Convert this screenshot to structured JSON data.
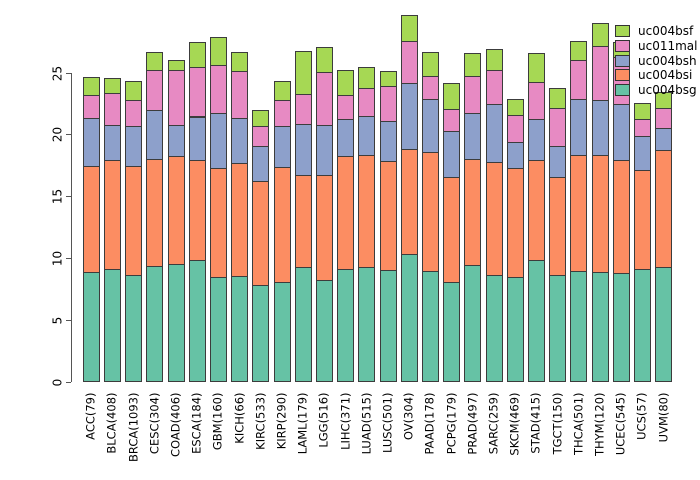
{
  "chart_data": {
    "type": "bar",
    "stacked": true,
    "title": "",
    "xlabel": "",
    "ylabel": "",
    "ylim": [
      0,
      29.6
    ],
    "y_ticks": [
      0,
      5,
      10,
      15,
      20,
      25
    ],
    "grid": false,
    "legend_position": "top-right",
    "categories": [
      "ACC(79)",
      "BLCA(408)",
      "BRCA(1093)",
      "CESC(304)",
      "COAD(406)",
      "ESCA(184)",
      "GBM(160)",
      "KICH(66)",
      "KIRC(533)",
      "KIRP(290)",
      "LAML(179)",
      "LGG(516)",
      "LIHC(371)",
      "LUAD(515)",
      "LUSC(501)",
      "OV(304)",
      "PAAD(178)",
      "PCPG(179)",
      "PRAD(497)",
      "SARC(259)",
      "SKCM(469)",
      "STAD(415)",
      "TGCT(150)",
      "THCA(501)",
      "THYM(120)",
      "UCEC(545)",
      "UCS(57)",
      "UVM(80)"
    ],
    "series": [
      {
        "name": "uc004bsg",
        "color": "#66C2A5",
        "values": [
          8.8,
          9.1,
          8.6,
          9.3,
          9.5,
          9.8,
          8.4,
          8.5,
          7.8,
          8.0,
          9.2,
          8.2,
          9.1,
          9.2,
          9.0,
          10.3,
          8.9,
          8.0,
          9.4,
          8.6,
          8.4,
          9.8,
          8.6,
          8.9,
          8.8,
          8.7,
          9.1,
          9.2
        ]
      },
      {
        "name": "uc004bsi",
        "color": "#FC8D62",
        "values": [
          8.6,
          8.8,
          8.8,
          8.7,
          8.7,
          8.1,
          8.8,
          9.1,
          8.4,
          9.3,
          7.5,
          8.5,
          9.1,
          9.1,
          8.8,
          8.5,
          9.6,
          8.5,
          8.6,
          9.1,
          8.8,
          8.1,
          7.9,
          9.4,
          9.45,
          9.2,
          8.0,
          9.5
        ]
      },
      {
        "name": "uc004bsh",
        "color": "#8DA0CB",
        "values": [
          3.9,
          2.8,
          3.2,
          3.9,
          2.5,
          3.5,
          4.5,
          3.7,
          2.8,
          3.3,
          4.1,
          4.0,
          3.0,
          3.1,
          3.2,
          5.3,
          4.3,
          3.7,
          3.7,
          4.7,
          2.1,
          3.3,
          2.5,
          4.5,
          4.45,
          4.5,
          2.7,
          1.8
        ]
      },
      {
        "name": "uc011mal",
        "color": "#E78AC3",
        "values": [
          1.8,
          2.6,
          2.1,
          3.3,
          4.5,
          4.0,
          3.9,
          3.8,
          1.6,
          2.1,
          2.4,
          4.3,
          1.9,
          2.3,
          2.9,
          3.4,
          1.9,
          1.8,
          3.0,
          2.8,
          2.2,
          3.0,
          3.1,
          3.2,
          4.4,
          3.8,
          1.4,
          1.55
        ]
      },
      {
        "name": "uc004bsf",
        "color": "#A6D854",
        "values": [
          1.5,
          1.2,
          1.6,
          1.4,
          0.8,
          2.0,
          2.2,
          1.5,
          1.3,
          1.6,
          3.5,
          2.0,
          2.1,
          1.7,
          1.2,
          2.1,
          1.9,
          2.1,
          1.8,
          1.7,
          1.3,
          2.3,
          1.6,
          1.5,
          1.9,
          1.2,
          1.3,
          1.35
        ]
      }
    ],
    "legend_entries": [
      {
        "label": "uc004bsf",
        "color": "#A6D854"
      },
      {
        "label": "uc011mal",
        "color": "#E78AC3"
      },
      {
        "label": "uc004bsh",
        "color": "#8DA0CB"
      },
      {
        "label": "uc004bsi",
        "color": "#FC8D62"
      },
      {
        "label": "uc004bsg",
        "color": "#66C2A5"
      }
    ]
  }
}
